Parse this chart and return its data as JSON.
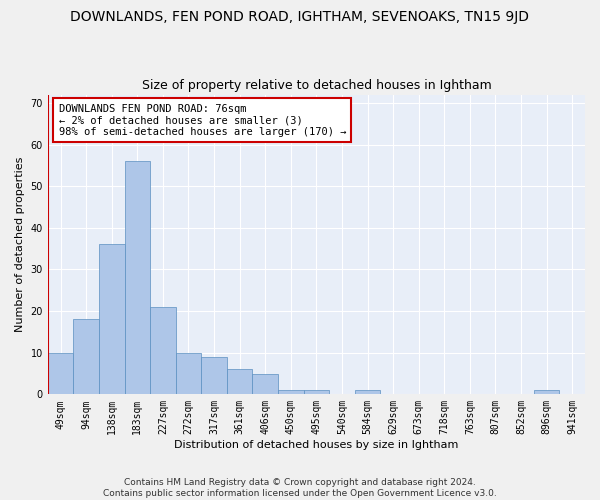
{
  "title": "DOWNLANDS, FEN POND ROAD, IGHTHAM, SEVENOAKS, TN15 9JD",
  "subtitle": "Size of property relative to detached houses in Ightham",
  "xlabel": "Distribution of detached houses by size in Ightham",
  "ylabel": "Number of detached properties",
  "footer_line1": "Contains HM Land Registry data © Crown copyright and database right 2024.",
  "footer_line2": "Contains public sector information licensed under the Open Government Licence v3.0.",
  "bin_labels": [
    "49sqm",
    "94sqm",
    "138sqm",
    "183sqm",
    "227sqm",
    "272sqm",
    "317sqm",
    "361sqm",
    "406sqm",
    "450sqm",
    "495sqm",
    "540sqm",
    "584sqm",
    "629sqm",
    "673sqm",
    "718sqm",
    "763sqm",
    "807sqm",
    "852sqm",
    "896sqm",
    "941sqm"
  ],
  "bar_heights": [
    10,
    18,
    36,
    56,
    21,
    10,
    9,
    6,
    5,
    1,
    1,
    0,
    1,
    0,
    0,
    0,
    0,
    0,
    0,
    1,
    0
  ],
  "bar_color": "#aec6e8",
  "bar_edge_color": "#5a8fc0",
  "highlight_color": "#cc0000",
  "annotation_text": "DOWNLANDS FEN POND ROAD: 76sqm\n← 2% of detached houses are smaller (3)\n98% of semi-detached houses are larger (170) →",
  "annotation_box_color": "#ffffff",
  "annotation_box_edge": "#cc0000",
  "ylim": [
    0,
    72
  ],
  "yticks": [
    0,
    10,
    20,
    30,
    40,
    50,
    60,
    70
  ],
  "background_color": "#e8eef8",
  "grid_color": "#ffffff",
  "title_fontsize": 10,
  "subtitle_fontsize": 9,
  "axis_label_fontsize": 8,
  "tick_fontsize": 7,
  "annotation_fontsize": 7.5,
  "footer_fontsize": 6.5
}
